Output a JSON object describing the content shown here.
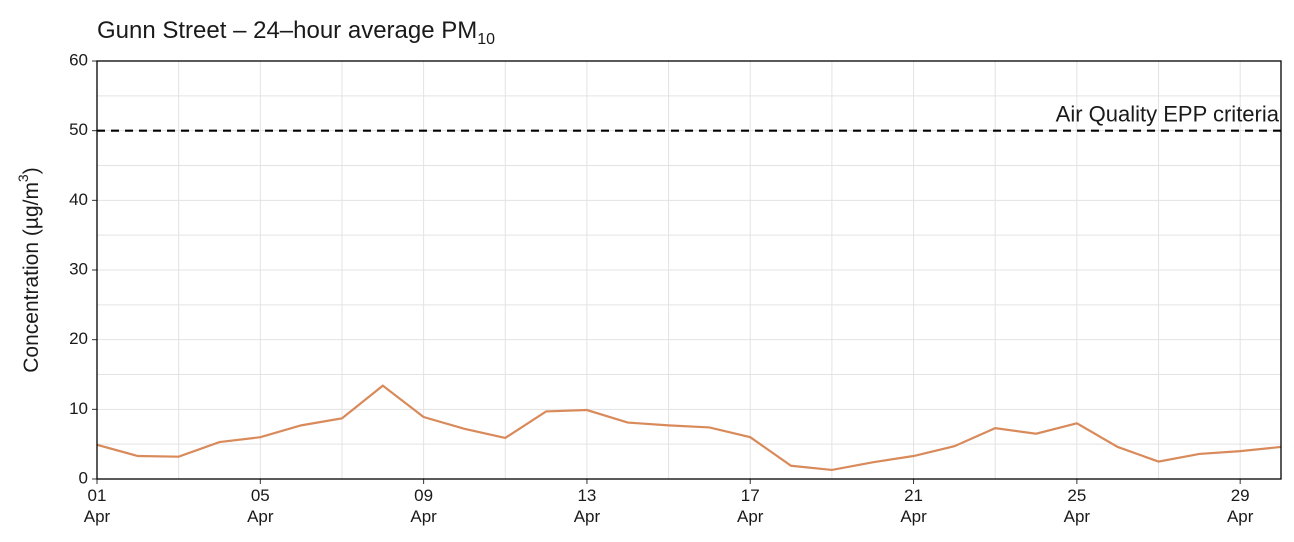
{
  "chart_data": {
    "type": "line",
    "title": "Gunn Street – 24–hour average PM",
    "title_subscript": "10",
    "ylabel": [
      "Concentration (µg/m",
      "3",
      ")"
    ],
    "x": [
      1,
      2,
      3,
      4,
      5,
      6,
      7,
      8,
      9,
      10,
      11,
      12,
      13,
      14,
      15,
      16,
      17,
      18,
      19,
      20,
      21,
      22,
      23,
      24,
      25,
      26,
      27,
      28,
      29,
      30
    ],
    "series": [
      {
        "name": "PM10",
        "color": "#d98a5b",
        "values": [
          4.9,
          3.3,
          3.2,
          5.3,
          6.0,
          7.7,
          8.7,
          13.4,
          8.9,
          7.2,
          5.9,
          9.7,
          9.9,
          8.1,
          7.7,
          7.4,
          6.0,
          1.9,
          1.3,
          2.4,
          3.3,
          4.7,
          7.3,
          6.5,
          8.0,
          4.6,
          2.5,
          3.6,
          4.0,
          4.6
        ]
      }
    ],
    "xlim": [
      1,
      30
    ],
    "xticks": [
      {
        "value": 1,
        "label": "01 Apr"
      },
      {
        "value": 5,
        "label": "05 Apr"
      },
      {
        "value": 9,
        "label": "09 Apr"
      },
      {
        "value": 13,
        "label": "13 Apr"
      },
      {
        "value": 17,
        "label": "17 Apr"
      },
      {
        "value": 21,
        "label": "21 Apr"
      },
      {
        "value": 25,
        "label": "25 Apr"
      },
      {
        "value": 29,
        "label": "29 Apr"
      }
    ],
    "ylim": [
      0,
      60
    ],
    "yticks": [
      0,
      10,
      20,
      30,
      40,
      50,
      60
    ],
    "grid": true,
    "minor_grid": true,
    "reference_line": {
      "value": 50,
      "label": "Air Quality EPP criteria"
    }
  }
}
